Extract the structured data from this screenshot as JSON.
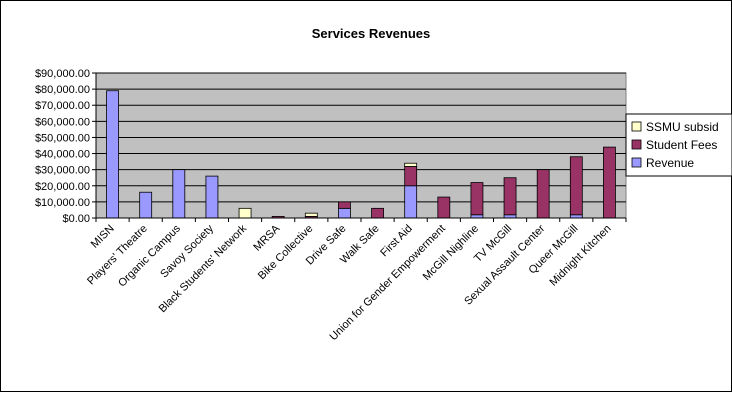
{
  "chart_data": {
    "type": "bar",
    "stacked": true,
    "title": "Services Revenues",
    "xlabel": "",
    "ylabel": "",
    "ylim": [
      0,
      90000
    ],
    "yticks": [
      "$0.00",
      "$10,000.00",
      "$20,000.00",
      "$30,000.00",
      "$40,000.00",
      "$50,000.00",
      "$60,000.00",
      "$70,000.00",
      "$80,000.00",
      "$90,000.00"
    ],
    "grid": true,
    "legend_position": "right",
    "categories": [
      "MISN",
      "Players' Theatre",
      "Organic Campus",
      "Savoy Society",
      "Black Students' Network",
      "MRSA",
      "Bike Collective",
      "Drive Safe",
      "Walk Safe",
      "First Aid",
      "Union for Gender Empowerment",
      "McGill Nighline",
      "TV McGill",
      "Sexual Assault Center",
      "Queer McGill",
      "Midnight Kitchen"
    ],
    "series": [
      {
        "name": "Revenue",
        "color": "#9999ff",
        "values": [
          79000,
          16000,
          30000,
          26000,
          0,
          0,
          0,
          6000,
          0,
          20000,
          0,
          2000,
          2000,
          0,
          2000,
          0
        ]
      },
      {
        "name": "Student Fees",
        "color": "#993366",
        "values": [
          0,
          0,
          0,
          0,
          0,
          1000,
          1000,
          4000,
          6000,
          12000,
          13000,
          20000,
          23000,
          30000,
          36000,
          44000
        ]
      },
      {
        "name": "SSMU subsidy",
        "color": "#ffffcc",
        "values": [
          0,
          0,
          0,
          0,
          6000,
          0,
          2000,
          0,
          0,
          2000,
          0,
          0,
          0,
          0,
          0,
          0
        ]
      }
    ],
    "legend_entries": [
      "SSMU subsid",
      "Student Fees",
      "Revenue"
    ]
  }
}
